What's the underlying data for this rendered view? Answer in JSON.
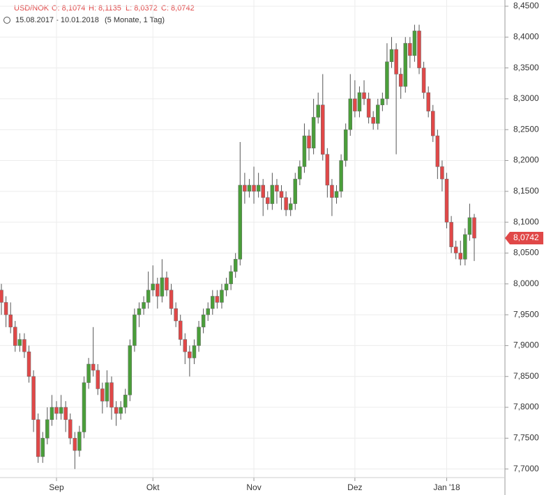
{
  "chart_data": {
    "type": "candlestick",
    "symbol": "USD/NOK",
    "header_values": [
      "O: 8,1074",
      "H: 8,1135",
      "L: 8,0372",
      "C: 8,0742"
    ],
    "period": "15.08.2017 - 10.01.2018",
    "period_note": "(5 Monate, 1 Tag)",
    "last_label": "8,0742",
    "up_color": "#4a9e3a",
    "down_color": "#e04848",
    "ylim": [
      7.6861,
      8.4601
    ],
    "yticks": [
      {
        "value": 7.7,
        "label": "7,7000"
      },
      {
        "value": 7.75,
        "label": "7,7500"
      },
      {
        "value": 7.8,
        "label": "7,8000"
      },
      {
        "value": 7.85,
        "label": "7,8500"
      },
      {
        "value": 7.9,
        "label": "7,9000"
      },
      {
        "value": 7.95,
        "label": "7,9500"
      },
      {
        "value": 8.0,
        "label": "8,0000"
      },
      {
        "value": 8.05,
        "label": "8,0500"
      },
      {
        "value": 8.1,
        "label": "8,1000"
      },
      {
        "value": 8.15,
        "label": "8,1500"
      },
      {
        "value": 8.2,
        "label": "8,2000"
      },
      {
        "value": 8.25,
        "label": "8,2500"
      },
      {
        "value": 8.3,
        "label": "8,3000"
      },
      {
        "value": 8.35,
        "label": "8,3500"
      },
      {
        "value": 8.4,
        "label": "8,4000"
      },
      {
        "value": 8.45,
        "label": "8,4500"
      }
    ],
    "xticks": [
      {
        "index": 12,
        "label": "Sep"
      },
      {
        "index": 33,
        "label": "Okt"
      },
      {
        "index": 55,
        "label": "Nov"
      },
      {
        "index": 77,
        "label": "Dez"
      },
      {
        "index": 97,
        "label": "Jan '18"
      }
    ],
    "grid": true,
    "ohlc": [
      [
        7.99,
        8.0,
        7.95,
        7.97
      ],
      [
        7.97,
        7.98,
        7.93,
        7.95
      ],
      [
        7.95,
        7.97,
        7.92,
        7.93
      ],
      [
        7.93,
        7.94,
        7.89,
        7.9
      ],
      [
        7.9,
        7.92,
        7.89,
        7.91
      ],
      [
        7.91,
        7.92,
        7.88,
        7.89
      ],
      [
        7.89,
        7.9,
        7.84,
        7.85
      ],
      [
        7.85,
        7.86,
        7.76,
        7.78
      ],
      [
        7.78,
        7.79,
        7.71,
        7.72
      ],
      [
        7.72,
        7.76,
        7.71,
        7.75
      ],
      [
        7.75,
        7.8,
        7.74,
        7.78
      ],
      [
        7.78,
        7.82,
        7.77,
        7.8
      ],
      [
        7.8,
        7.81,
        7.78,
        7.79
      ],
      [
        7.79,
        7.82,
        7.78,
        7.8
      ],
      [
        7.8,
        7.81,
        7.76,
        7.78
      ],
      [
        7.78,
        7.79,
        7.74,
        7.75
      ],
      [
        7.75,
        7.76,
        7.7,
        7.73
      ],
      [
        7.73,
        7.77,
        7.72,
        7.76
      ],
      [
        7.76,
        7.85,
        7.75,
        7.84
      ],
      [
        7.84,
        7.88,
        7.83,
        7.87
      ],
      [
        7.87,
        7.93,
        7.85,
        7.86
      ],
      [
        7.86,
        7.87,
        7.82,
        7.83
      ],
      [
        7.83,
        7.84,
        7.79,
        7.81
      ],
      [
        7.81,
        7.86,
        7.8,
        7.84
      ],
      [
        7.84,
        7.85,
        7.78,
        7.8
      ],
      [
        7.8,
        7.81,
        7.77,
        7.79
      ],
      [
        7.79,
        7.81,
        7.78,
        7.8
      ],
      [
        7.8,
        7.83,
        7.79,
        7.82
      ],
      [
        7.82,
        7.91,
        7.81,
        7.9
      ],
      [
        7.9,
        7.96,
        7.89,
        7.95
      ],
      [
        7.95,
        7.97,
        7.93,
        7.96
      ],
      [
        7.96,
        7.98,
        7.95,
        7.97
      ],
      [
        7.97,
        8.02,
        7.96,
        7.99
      ],
      [
        7.99,
        8.03,
        7.98,
        8.0
      ],
      [
        8.0,
        8.01,
        7.96,
        7.98
      ],
      [
        7.98,
        8.04,
        7.97,
        8.01
      ],
      [
        8.01,
        8.02,
        7.98,
        7.99
      ],
      [
        7.99,
        8.0,
        7.95,
        7.96
      ],
      [
        7.96,
        7.97,
        7.93,
        7.94
      ],
      [
        7.94,
        7.95,
        7.9,
        7.91
      ],
      [
        7.91,
        7.92,
        7.87,
        7.89
      ],
      [
        7.89,
        7.9,
        7.85,
        7.88
      ],
      [
        7.88,
        7.91,
        7.87,
        7.9
      ],
      [
        7.9,
        7.94,
        7.89,
        7.93
      ],
      [
        7.93,
        7.96,
        7.92,
        7.95
      ],
      [
        7.95,
        7.97,
        7.94,
        7.96
      ],
      [
        7.96,
        7.99,
        7.95,
        7.98
      ],
      [
        7.98,
        7.99,
        7.96,
        7.97
      ],
      [
        7.97,
        8.0,
        7.96,
        7.99
      ],
      [
        7.99,
        8.01,
        7.98,
        8.0
      ],
      [
        8.0,
        8.03,
        7.99,
        8.02
      ],
      [
        8.02,
        8.05,
        8.01,
        8.04
      ],
      [
        8.04,
        8.23,
        8.03,
        8.16
      ],
      [
        8.16,
        8.18,
        8.13,
        8.15
      ],
      [
        8.15,
        8.17,
        8.14,
        8.16
      ],
      [
        8.16,
        8.19,
        8.13,
        8.15
      ],
      [
        8.15,
        8.18,
        8.14,
        8.16
      ],
      [
        8.16,
        8.17,
        8.11,
        8.14
      ],
      [
        8.14,
        8.15,
        8.12,
        8.13
      ],
      [
        8.13,
        8.18,
        8.12,
        8.16
      ],
      [
        8.16,
        8.17,
        8.13,
        8.15
      ],
      [
        8.15,
        8.16,
        8.12,
        8.14
      ],
      [
        8.14,
        8.15,
        8.11,
        8.12
      ],
      [
        8.12,
        8.14,
        8.11,
        8.13
      ],
      [
        8.13,
        8.18,
        8.12,
        8.17
      ],
      [
        8.17,
        8.2,
        8.16,
        8.19
      ],
      [
        8.19,
        8.26,
        8.18,
        8.24
      ],
      [
        8.24,
        8.25,
        8.2,
        8.22
      ],
      [
        8.22,
        8.3,
        8.21,
        8.27
      ],
      [
        8.27,
        8.31,
        8.26,
        8.29
      ],
      [
        8.29,
        8.34,
        8.2,
        8.21
      ],
      [
        8.21,
        8.22,
        8.14,
        8.16
      ],
      [
        8.16,
        8.17,
        8.11,
        8.14
      ],
      [
        8.14,
        8.16,
        8.13,
        8.15
      ],
      [
        8.15,
        8.21,
        8.14,
        8.2
      ],
      [
        8.2,
        8.26,
        8.19,
        8.25
      ],
      [
        8.25,
        8.34,
        8.24,
        8.3
      ],
      [
        8.3,
        8.33,
        8.27,
        8.28
      ],
      [
        8.28,
        8.32,
        8.27,
        8.31
      ],
      [
        8.31,
        8.33,
        8.29,
        8.3
      ],
      [
        8.3,
        8.31,
        8.26,
        8.27
      ],
      [
        8.27,
        8.28,
        8.25,
        8.26
      ],
      [
        8.26,
        8.3,
        8.25,
        8.29
      ],
      [
        8.29,
        8.31,
        8.28,
        8.3
      ],
      [
        8.3,
        8.39,
        8.29,
        8.36
      ],
      [
        8.36,
        8.4,
        8.35,
        8.38
      ],
      [
        8.38,
        8.39,
        8.21,
        8.34
      ],
      [
        8.34,
        8.35,
        8.3,
        8.32
      ],
      [
        8.32,
        8.4,
        8.31,
        8.39
      ],
      [
        8.39,
        8.4,
        8.35,
        8.37
      ],
      [
        8.37,
        8.42,
        8.36,
        8.41
      ],
      [
        8.41,
        8.42,
        8.34,
        8.35
      ],
      [
        8.35,
        8.36,
        8.3,
        8.31
      ],
      [
        8.31,
        8.32,
        8.27,
        8.28
      ],
      [
        8.28,
        8.29,
        8.23,
        8.24
      ],
      [
        8.24,
        8.25,
        8.17,
        8.19
      ],
      [
        8.19,
        8.2,
        8.15,
        8.17
      ],
      [
        8.17,
        8.18,
        8.09,
        8.1
      ],
      [
        8.1,
        8.11,
        8.05,
        8.06
      ],
      [
        8.06,
        8.07,
        8.04,
        8.05
      ],
      [
        8.05,
        8.07,
        8.03,
        8.04
      ],
      [
        8.04,
        8.09,
        8.03,
        8.08
      ],
      [
        8.08,
        8.13,
        8.07,
        8.1074
      ],
      [
        8.1074,
        8.1135,
        8.0372,
        8.0742
      ]
    ]
  }
}
